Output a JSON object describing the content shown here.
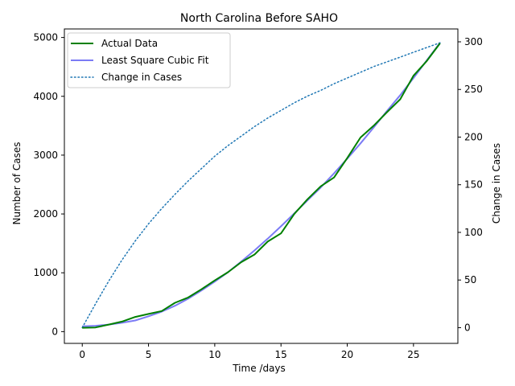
{
  "chart_data": {
    "type": "line",
    "title": "North Carolina Before SAHO",
    "xlabel": "Time /days",
    "ylabel": "Number of Cases",
    "ylabel_right": "Change in Cases",
    "xlim": [
      -1.35,
      28.35
    ],
    "ylim": [
      -200,
      5145
    ],
    "ylim_right": [
      -16.5,
      313.5
    ],
    "x_ticks": [
      0,
      5,
      10,
      15,
      20,
      25
    ],
    "y_ticks": [
      0,
      1000,
      2000,
      3000,
      4000,
      5000
    ],
    "y_ticks_right": [
      0,
      50,
      100,
      150,
      200,
      250,
      300
    ],
    "legend_position": "top-left",
    "grid": false,
    "x": [
      0,
      1,
      2,
      3,
      4,
      5,
      6,
      7,
      8,
      9,
      10,
      11,
      12,
      13,
      14,
      15,
      16,
      17,
      18,
      19,
      20,
      21,
      22,
      23,
      24,
      25,
      26,
      27
    ],
    "series": [
      {
        "name": "Actual Data",
        "axis": "left",
        "color": "#008000",
        "style": "solid",
        "values": [
          65,
          70,
          120,
          170,
          250,
          300,
          350,
          490,
          580,
          720,
          870,
          1010,
          1180,
          1310,
          1530,
          1670,
          2000,
          2250,
          2470,
          2620,
          2950,
          3300,
          3500,
          3730,
          3950,
          4350,
          4600,
          4900
        ]
      },
      {
        "name": "Least Square Cubic Fit",
        "axis": "left",
        "color": "#7b7bf5",
        "style": "solid",
        "values": [
          90,
          100,
          120,
          150,
          190,
          260,
          340,
          440,
          560,
          700,
          850,
          1010,
          1190,
          1380,
          1580,
          1790,
          2010,
          2230,
          2450,
          2690,
          2940,
          3200,
          3470,
          3750,
          4020,
          4310,
          4610,
          4910
        ]
      },
      {
        "name": "Change in Cases",
        "axis": "right",
        "color": "#1f77b4",
        "style": "dotted",
        "values": [
          0,
          25,
          49,
          71,
          91,
          109,
          125,
          140,
          154,
          167,
          180,
          191,
          201,
          211,
          220,
          228,
          236,
          243,
          249,
          256,
          262,
          268,
          274,
          279,
          284,
          289,
          294,
          299
        ]
      }
    ]
  }
}
